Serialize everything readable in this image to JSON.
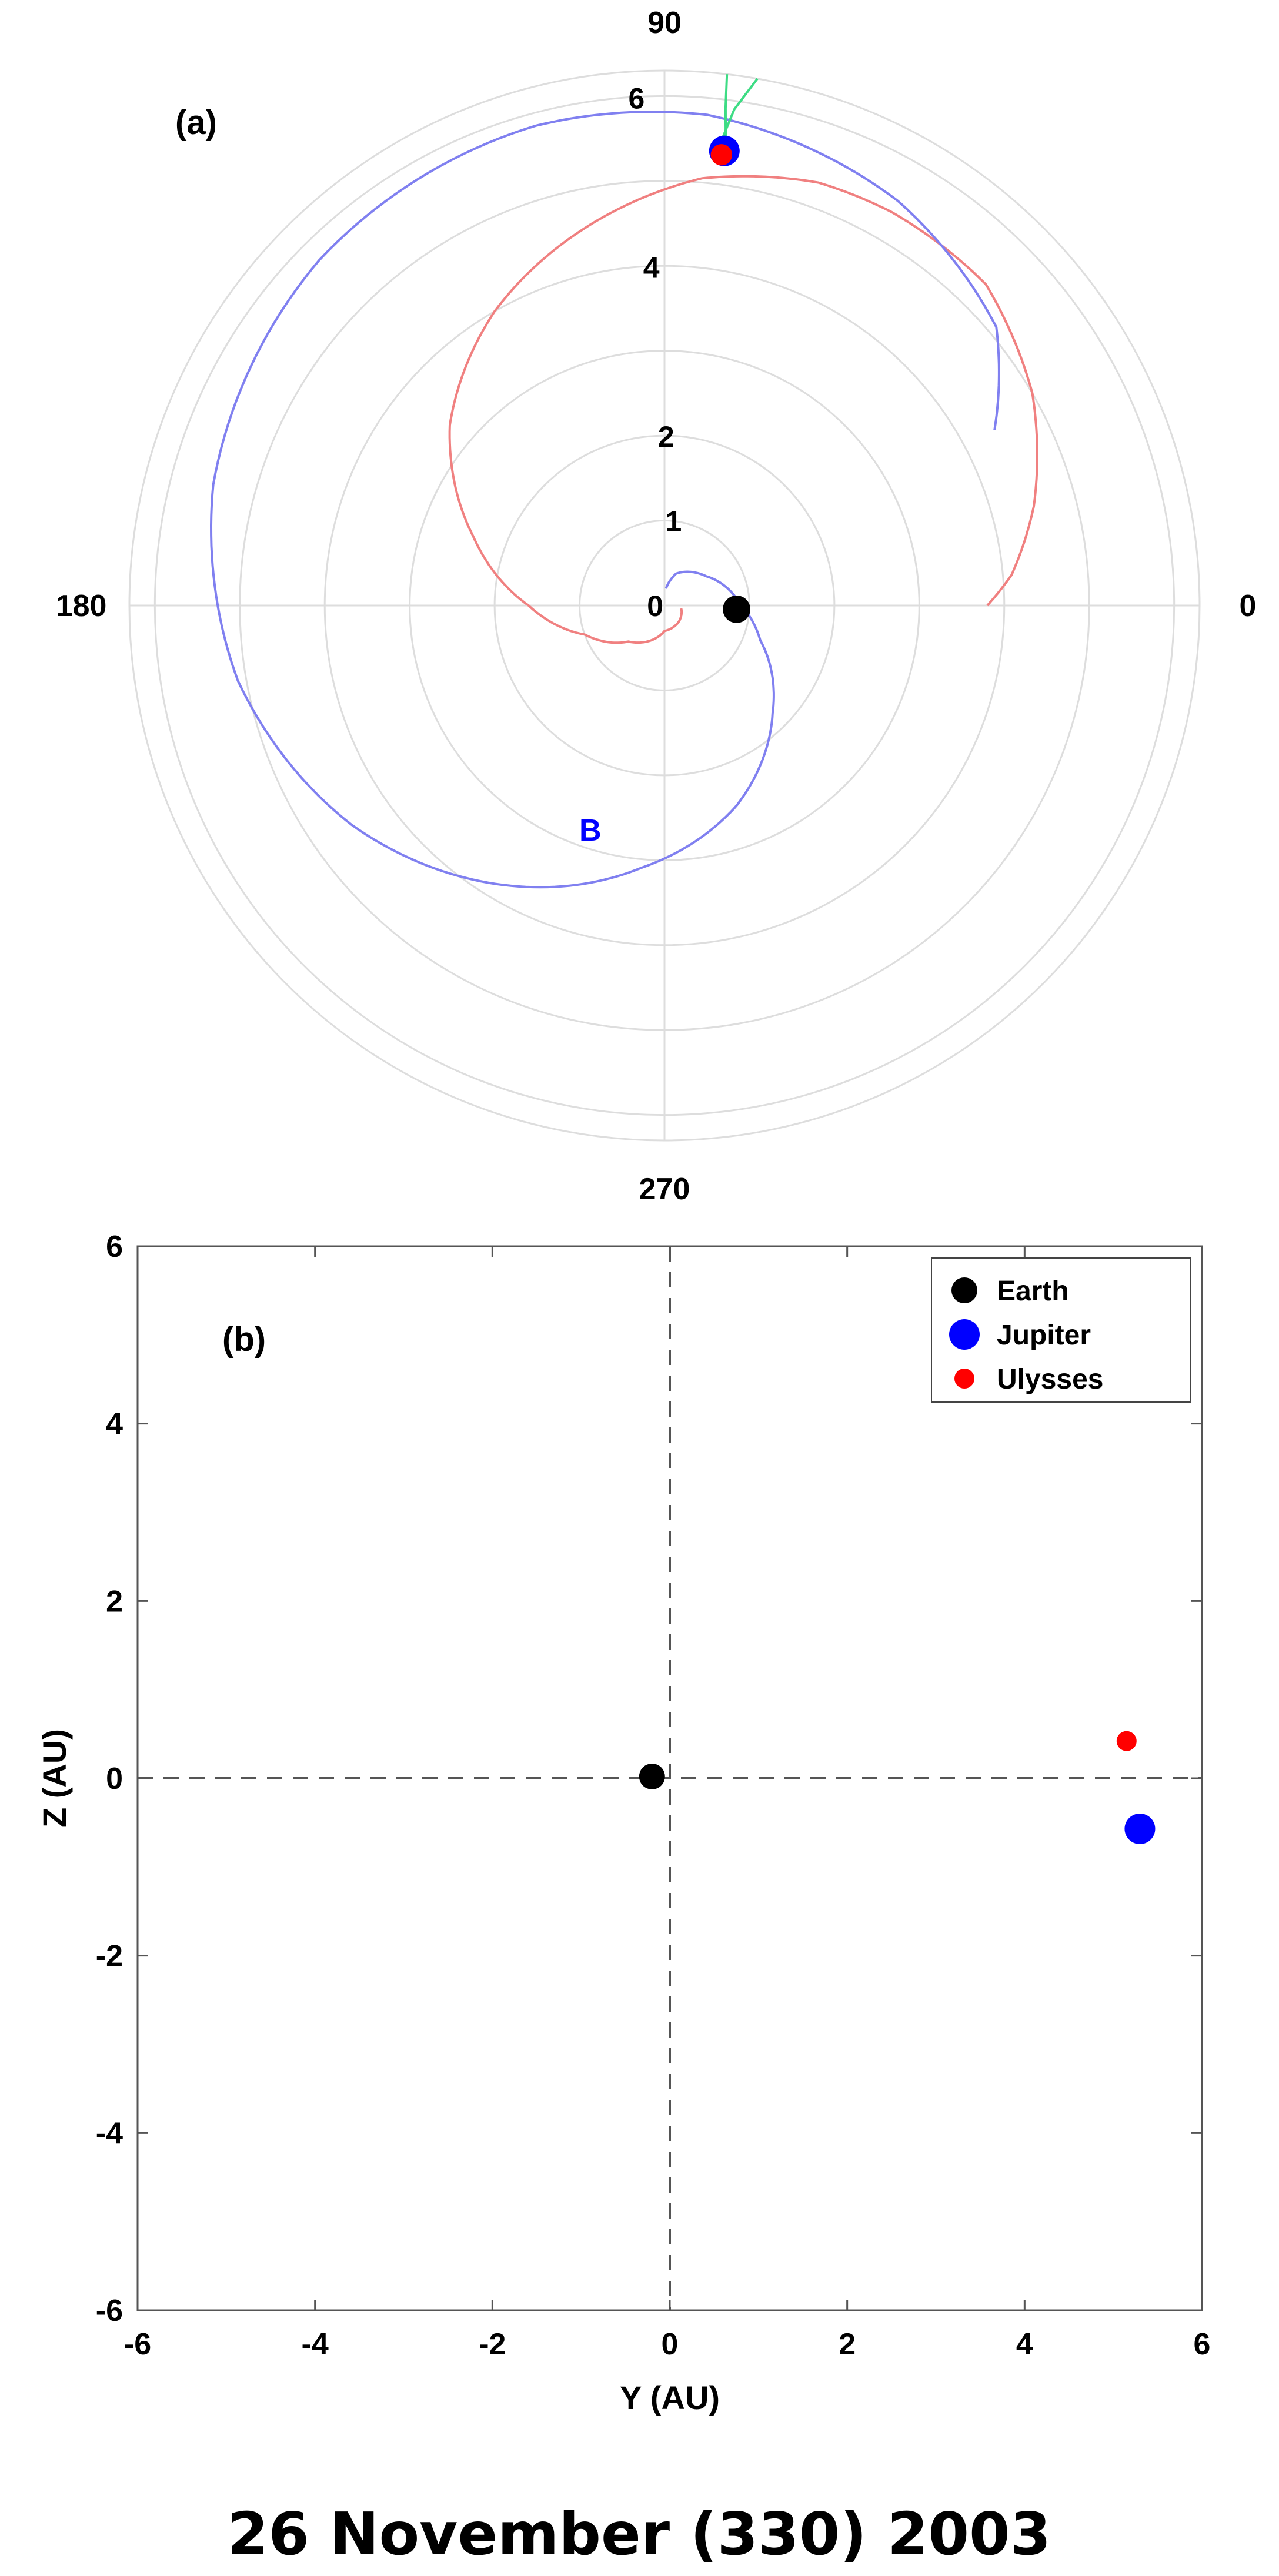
{
  "chart_data": [
    {
      "type": "polar",
      "panel_label": "(a)",
      "angle_ticks": [
        {
          "angle": 0,
          "label": "0"
        },
        {
          "angle": 90,
          "label": "90"
        },
        {
          "angle": 180,
          "label": "180"
        },
        {
          "angle": 270,
          "label": "270"
        }
      ],
      "radial_ticks": [
        {
          "r": 0,
          "label": "0"
        },
        {
          "r": 1,
          "label": "1"
        },
        {
          "r": 2,
          "label": "2"
        },
        {
          "r": 4,
          "label": "4"
        },
        {
          "r": 6,
          "label": "6"
        }
      ],
      "rlim": [
        0,
        6.3
      ],
      "grid": true,
      "grid_rings": [
        1,
        2,
        3,
        4,
        5,
        6,
        6.3
      ],
      "grid_spokes_deg": [
        0,
        90,
        180,
        270
      ],
      "series": [
        {
          "kind": "spiral",
          "color": "#f08080",
          "points": [
            [
              0.2,
              -10
            ],
            [
              0.25,
              -45
            ],
            [
              0.3,
              -90
            ],
            [
              0.6,
              -135
            ],
            [
              1.0,
              -160
            ],
            [
              1.6,
              -180
            ],
            [
              2.4,
              -200
            ],
            [
              3.3,
              -220
            ],
            [
              4.0,
              -240
            ],
            [
              4.6,
              -260
            ],
            [
              5.05,
              -275
            ],
            [
              5.3,
              -290
            ],
            [
              5.35,
              -300
            ],
            [
              5.35,
              -315
            ],
            [
              5.0,
              -330
            ],
            [
              4.5,
              -345
            ],
            [
              4.1,
              -355
            ],
            [
              3.8,
              -360
            ]
          ]
        },
        {
          "kind": "spiral",
          "color": "#8080f0",
          "annotation": "B",
          "points": [
            [
              0.2,
              85
            ],
            [
              0.4,
              70
            ],
            [
              0.6,
              35
            ],
            [
              0.9,
              0
            ],
            [
              1.2,
              -20
            ],
            [
              1.8,
              -45
            ],
            [
              2.5,
              -70
            ],
            [
              3.1,
              -95
            ],
            [
              3.8,
              -120
            ],
            [
              4.5,
              -145
            ],
            [
              5.1,
              -170
            ],
            [
              5.5,
              -195
            ],
            [
              5.75,
              -225
            ],
            [
              5.85,
              -255
            ],
            [
              5.8,
              -275
            ],
            [
              5.5,
              -300
            ],
            [
              5.1,
              -320
            ],
            [
              4.4,
              -332
            ]
          ]
        },
        {
          "kind": "marker",
          "name": "Earth",
          "r": 0.85,
          "theta": -3,
          "color": "#000000",
          "size": 18
        },
        {
          "kind": "marker",
          "name": "Jupiter",
          "r": 5.4,
          "theta": 82.5,
          "color": "#0000ff",
          "size": 20
        },
        {
          "kind": "marker",
          "name": "Ulysses",
          "r": 5.35,
          "theta": 82.8,
          "color": "#ff0000",
          "size": 14
        },
        {
          "kind": "band",
          "color": "#3ddc84",
          "points_left": [
            [
              5.32,
              82.2
            ],
            [
              5.9,
              83.0
            ],
            [
              6.3,
              83.3
            ]
          ],
          "points_right": [
            [
              5.32,
              83.6
            ],
            [
              5.9,
              82.0
            ],
            [
              6.3,
              80.0
            ]
          ]
        }
      ]
    },
    {
      "type": "scatter",
      "panel_label": "(b)",
      "xlabel": "Y (AU)",
      "ylabel": "Z (AU)",
      "xlim": [
        -6,
        6
      ],
      "ylim": [
        -6,
        6
      ],
      "xticks": [
        -6,
        -4,
        -2,
        0,
        2,
        4,
        6
      ],
      "yticks": [
        -6,
        -4,
        -2,
        0,
        2,
        4,
        6
      ],
      "reference_lines": {
        "x": 0,
        "y": 0,
        "style": "dashed"
      },
      "legend_position": "top-right",
      "series": [
        {
          "name": "Earth",
          "color": "#000000",
          "x": [
            -0.2
          ],
          "y": [
            0.02
          ]
        },
        {
          "name": "Jupiter",
          "color": "#0000ff",
          "x": [
            5.3
          ],
          "y": [
            -0.57
          ]
        },
        {
          "name": "Ulysses",
          "color": "#ff0000",
          "x": [
            5.15
          ],
          "y": [
            0.42
          ]
        }
      ]
    }
  ],
  "caption": "26 November (330) 2003"
}
